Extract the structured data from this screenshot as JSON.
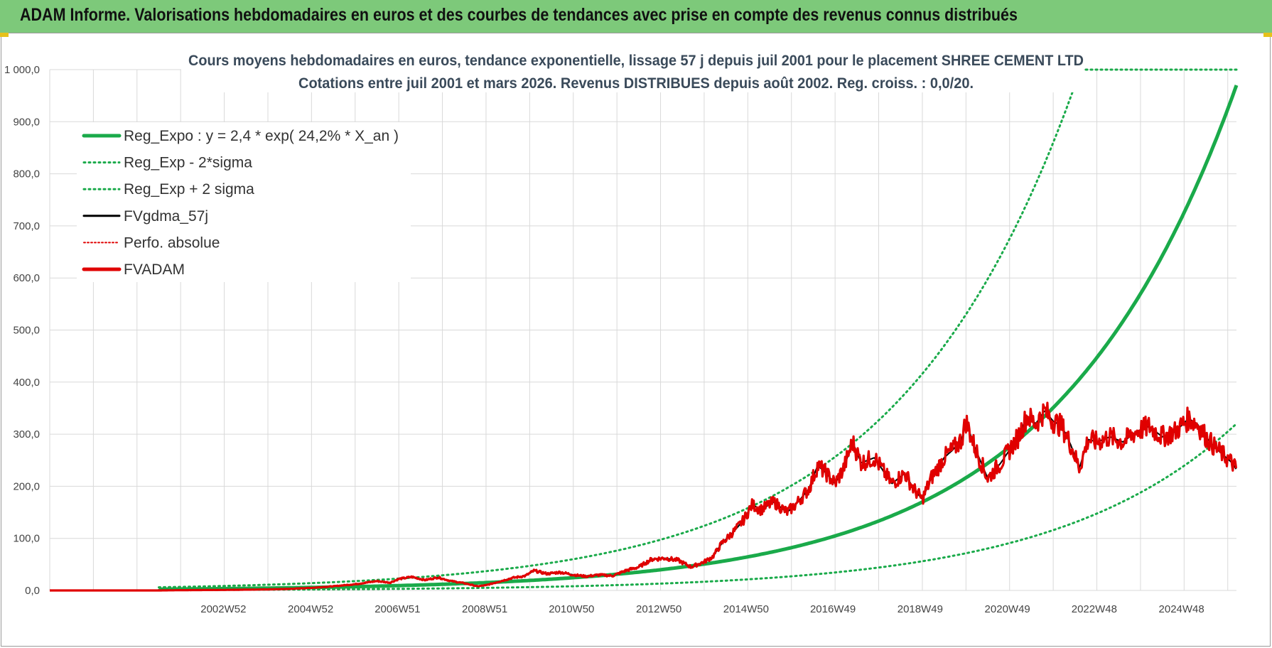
{
  "banner": {
    "title": "ADAM Informe. Valorisations hebdomadaires en euros et des courbes de tendances avec prise en compte des revenus connus distribués"
  },
  "colors": {
    "banner_bg": "#7dc97a",
    "reg_expo": "#1aaa4a",
    "sigma_lines": "#1aaa4a",
    "fvgdma": "#000000",
    "perfo": "#e00000",
    "fvadam": "#e00000",
    "grid": "#d9d9d9"
  },
  "chart_data": {
    "type": "line",
    "title_line1": "Cours moyens hebdomadaires en euros, tendance exponentielle, lissage 57 j depuis juil 2001 pour le placement SHREE CEMENT LTD",
    "title_line2": "Cotations entre juil 2001 et mars 2026. Revenus DISTRIBUES depuis août 2002. Reg. croiss. : 0,0/20.",
    "ylim": [
      0,
      1000
    ],
    "yticks": [
      "0,0",
      "100,0",
      "200,0",
      "300,0",
      "400,0",
      "500,0",
      "600,0",
      "700,0",
      "800,0",
      "900,0",
      "1 000,0"
    ],
    "x_tick_labels": [
      "2002W52",
      "2004W52",
      "2006W51",
      "2008W51",
      "2010W50",
      "2012W50",
      "2014W50",
      "2016W49",
      "2018W49",
      "2020W49",
      "2022W48",
      "2024W48"
    ],
    "x_tick_years": [
      2002.98,
      2004.98,
      2006.97,
      2008.97,
      2010.96,
      2012.96,
      2014.96,
      2016.95,
      2018.95,
      2020.95,
      2022.94,
      2024.94
    ],
    "x_range_years": [
      1999.0,
      2026.2
    ],
    "grid": true,
    "legend_position": "top-left",
    "legend": [
      {
        "label": "Reg_Expo : y = 2,4 * exp( 24,2% *  X_an )",
        "style": "solid-thick",
        "color": "#1aaa4a"
      },
      {
        "label": "Reg_Exp - 2*sigma",
        "style": "dotted",
        "color": "#1aaa4a"
      },
      {
        "label": "Reg_Exp + 2 sigma",
        "style": "dotted",
        "color": "#1aaa4a"
      },
      {
        "label": "FVgdma_57j",
        "style": "solid",
        "color": "#000000"
      },
      {
        "label": "Perfo. absolue",
        "style": "dotted-thin",
        "color": "#e00000"
      },
      {
        "label": "FVADAM",
        "style": "solid-thick",
        "color": "#e00000"
      }
    ],
    "regression": {
      "a": 2.4,
      "rate": 0.242,
      "start_year": 2001.5,
      "upper_factor": 2.45,
      "lower_factor": 0.33
    },
    "fvadam_points": [
      [
        1999.0,
        0
      ],
      [
        2001.5,
        0
      ],
      [
        2002.0,
        0.5
      ],
      [
        2003.0,
        1
      ],
      [
        2004.0,
        2
      ],
      [
        2004.5,
        3
      ],
      [
        2005.0,
        5
      ],
      [
        2005.5,
        8
      ],
      [
        2006.0,
        12
      ],
      [
        2006.5,
        18
      ],
      [
        2006.8,
        15
      ],
      [
        2007.0,
        22
      ],
      [
        2007.3,
        26
      ],
      [
        2007.6,
        20
      ],
      [
        2007.9,
        25
      ],
      [
        2008.2,
        18
      ],
      [
        2008.5,
        14
      ],
      [
        2008.8,
        8
      ],
      [
        2009.0,
        10
      ],
      [
        2009.3,
        17
      ],
      [
        2009.6,
        24
      ],
      [
        2009.9,
        28
      ],
      [
        2010.1,
        38
      ],
      [
        2010.4,
        32
      ],
      [
        2010.7,
        35
      ],
      [
        2011.0,
        30
      ],
      [
        2011.3,
        27
      ],
      [
        2011.6,
        30
      ],
      [
        2011.9,
        28
      ],
      [
        2012.2,
        38
      ],
      [
        2012.5,
        45
      ],
      [
        2012.8,
        60
      ],
      [
        2013.1,
        62
      ],
      [
        2013.4,
        58
      ],
      [
        2013.7,
        45
      ],
      [
        2014.0,
        55
      ],
      [
        2014.2,
        65
      ],
      [
        2014.4,
        90
      ],
      [
        2014.7,
        115
      ],
      [
        2014.9,
        135
      ],
      [
        2015.1,
        165
      ],
      [
        2015.3,
        155
      ],
      [
        2015.6,
        170
      ],
      [
        2015.9,
        150
      ],
      [
        2016.1,
        165
      ],
      [
        2016.4,
        195
      ],
      [
        2016.6,
        240
      ],
      [
        2016.8,
        225
      ],
      [
        2017.0,
        205
      ],
      [
        2017.2,
        235
      ],
      [
        2017.4,
        285
      ],
      [
        2017.6,
        245
      ],
      [
        2017.9,
        255
      ],
      [
        2018.1,
        230
      ],
      [
        2018.3,
        205
      ],
      [
        2018.6,
        225
      ],
      [
        2018.8,
        195
      ],
      [
        2019.0,
        175
      ],
      [
        2019.2,
        215
      ],
      [
        2019.5,
        255
      ],
      [
        2019.7,
        270
      ],
      [
        2019.9,
        290
      ],
      [
        2020.0,
        325
      ],
      [
        2020.2,
        275
      ],
      [
        2020.5,
        215
      ],
      [
        2020.8,
        245
      ],
      [
        2021.0,
        270
      ],
      [
        2021.2,
        295
      ],
      [
        2021.4,
        335
      ],
      [
        2021.6,
        320
      ],
      [
        2021.8,
        345
      ],
      [
        2022.0,
        325
      ],
      [
        2022.2,
        315
      ],
      [
        2022.4,
        280
      ],
      [
        2022.6,
        235
      ],
      [
        2022.8,
        290
      ],
      [
        2023.0,
        285
      ],
      [
        2023.3,
        295
      ],
      [
        2023.6,
        285
      ],
      [
        2023.9,
        305
      ],
      [
        2024.2,
        315
      ],
      [
        2024.5,
        295
      ],
      [
        2024.8,
        305
      ],
      [
        2025.1,
        330
      ],
      [
        2025.3,
        320
      ],
      [
        2025.5,
        295
      ],
      [
        2025.7,
        275
      ],
      [
        2025.9,
        260
      ],
      [
        2026.1,
        245
      ],
      [
        2026.2,
        232
      ]
    ]
  }
}
